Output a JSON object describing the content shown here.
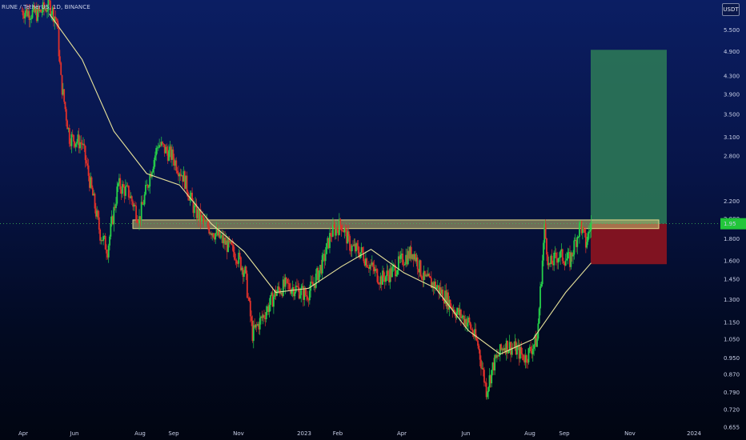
{
  "header": {
    "symbol": "RUNE / TetherUS, 1D, BINANCE"
  },
  "price_axis": {
    "currency": "USDT"
  },
  "colors": {
    "up": "#26d04a",
    "down": "#e0312a",
    "ma": "#e8e39a",
    "zone": "#c8c070",
    "target": "#2e7d57",
    "stop": "#8b1420",
    "price_tag": "#22c63a"
  },
  "chart_data": {
    "type": "line",
    "title": "",
    "ylim": [
      0.65,
      6.3
    ],
    "y_scale": "log",
    "y_ticks": [
      "5.500",
      "4.900",
      "4.300",
      "3.900",
      "3.500",
      "3.100",
      "2.800",
      "2.200",
      "2.000",
      "1.800",
      "1.600",
      "1.450",
      "1.300",
      "1.150",
      "1.050",
      "0.950",
      "0.870",
      "0.790",
      "0.720",
      "0.655"
    ],
    "x_ticks": [
      "Apr",
      "Jun",
      "Aug",
      "Sep",
      "Nov",
      "2023",
      "Feb",
      "Apr",
      "Jun",
      "Aug",
      "Sep",
      "Nov",
      "2024"
    ],
    "series": [
      {
        "kind": "close",
        "x": [
          "2022-04-05",
          "2022-04-20",
          "2022-05-01",
          "2022-05-08",
          "2022-05-12",
          "2022-05-20",
          "2022-06-01",
          "2022-06-12",
          "2022-06-18",
          "2022-06-25",
          "2022-07-05",
          "2022-07-15",
          "2022-07-25",
          "2022-08-05",
          "2022-08-12",
          "2022-08-18",
          "2022-08-25",
          "2022-09-05",
          "2022-09-15",
          "2022-09-25",
          "2022-10-05",
          "2022-10-15",
          "2022-10-25",
          "2022-11-02",
          "2022-11-09",
          "2022-11-20",
          "2022-12-01",
          "2022-12-10",
          "2022-12-20",
          "2022-12-30",
          "2023-01-05",
          "2023-01-15",
          "2023-01-22",
          "2023-02-01",
          "2023-02-10",
          "2023-02-20",
          "2023-03-01",
          "2023-03-10",
          "2023-03-20",
          "2023-04-01",
          "2023-04-10",
          "2023-04-20",
          "2023-05-01",
          "2023-05-10",
          "2023-05-20",
          "2023-06-01",
          "2023-06-10",
          "2023-06-18",
          "2023-06-25",
          "2023-07-05",
          "2023-07-15",
          "2023-07-25",
          "2023-08-05",
          "2023-08-12",
          "2023-08-16",
          "2023-08-25",
          "2023-09-05",
          "2023-09-15",
          "2023-09-20",
          "2023-09-25"
        ],
        "values": [
          6.1,
          6.0,
          6.3,
          5.8,
          4.2,
          3.1,
          3.0,
          2.2,
          1.85,
          1.7,
          2.4,
          2.3,
          2.0,
          2.6,
          3.0,
          2.9,
          2.8,
          2.5,
          2.1,
          1.95,
          1.85,
          1.75,
          1.65,
          1.5,
          1.08,
          1.2,
          1.35,
          1.4,
          1.38,
          1.33,
          1.4,
          1.6,
          1.85,
          1.95,
          1.72,
          1.67,
          1.55,
          1.45,
          1.5,
          1.62,
          1.68,
          1.45,
          1.4,
          1.32,
          1.22,
          1.15,
          1.02,
          0.8,
          0.92,
          1.02,
          1.0,
          0.95,
          1.05,
          1.9,
          1.55,
          1.65,
          1.6,
          1.95,
          1.75,
          1.95
        ]
      },
      {
        "kind": "moving_average",
        "x": [
          "2022-05-01",
          "2022-06-01",
          "2022-07-01",
          "2022-08-01",
          "2022-09-01",
          "2022-10-01",
          "2022-11-01",
          "2022-12-01",
          "2023-01-01",
          "2023-02-01",
          "2023-03-01",
          "2023-04-01",
          "2023-05-01",
          "2023-06-01",
          "2023-07-01",
          "2023-08-01",
          "2023-09-01",
          "2023-09-25"
        ],
        "values": [
          6.0,
          4.7,
          3.2,
          2.55,
          2.4,
          1.95,
          1.68,
          1.35,
          1.38,
          1.55,
          1.7,
          1.5,
          1.38,
          1.1,
          0.97,
          1.05,
          1.35,
          1.58
        ]
      }
    ],
    "annotations": {
      "resistance_zone": {
        "low": 1.9,
        "high": 1.99
      },
      "long_position": {
        "entry": 1.95,
        "target": 4.95,
        "stop": 1.57
      },
      "last_price_tag": "1.95"
    }
  }
}
